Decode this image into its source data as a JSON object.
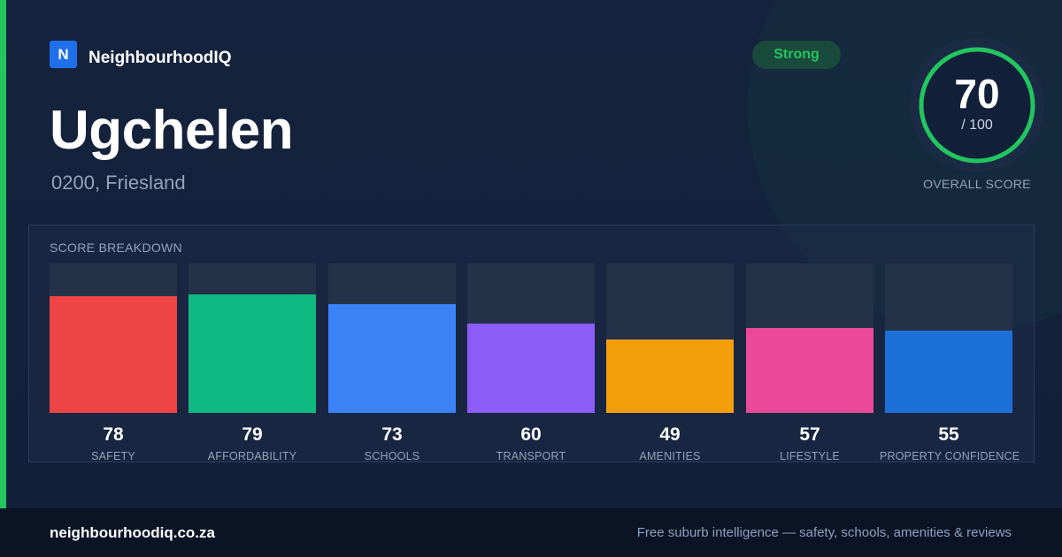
{
  "brand": {
    "logo_letter": "N",
    "name": "NeighbourhoodIQ"
  },
  "suburb": {
    "name": "Ugchelen",
    "subtitle": "0200, Friesland"
  },
  "rating": {
    "label": "Strong"
  },
  "overall": {
    "score": "70",
    "max": "/ 100",
    "label": "OVERALL SCORE",
    "fraction": 0.7
  },
  "breakdown": {
    "title": "SCORE BREAKDOWN"
  },
  "chart_data": {
    "type": "bar",
    "title": "SCORE BREAKDOWN",
    "ylim": [
      0,
      100
    ],
    "categories": [
      "SAFETY",
      "AFFORDABILITY",
      "SCHOOLS",
      "TRANSPORT",
      "AMENITIES",
      "LIFESTYLE",
      "PROPERTY CONFIDENCE"
    ],
    "values": [
      78,
      79,
      73,
      60,
      49,
      57,
      55
    ],
    "colors": [
      "#ef4444",
      "#10b981",
      "#3b82f6",
      "#8b5cf6",
      "#f59e0b",
      "#ec4899",
      "#1d6fd8"
    ],
    "grid": false
  },
  "colors": {
    "accent": "#22c55e",
    "brand": "#1f6feb",
    "background": "#131f38"
  },
  "footer": {
    "url": "neighbourhoodiq.co.za",
    "tagline": "Free suburb intelligence — safety, schools, amenities & reviews"
  }
}
